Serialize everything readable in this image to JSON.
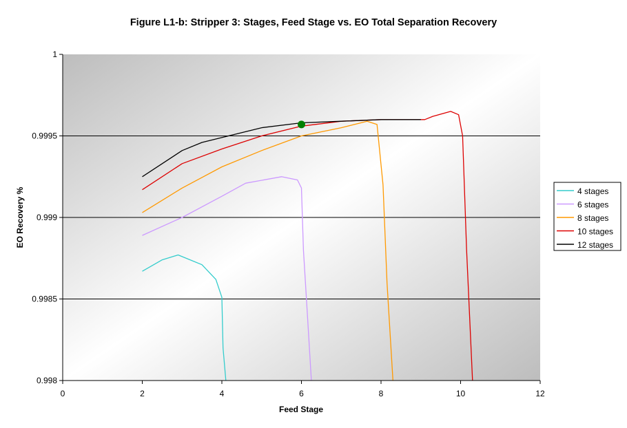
{
  "chart_data": {
    "type": "line",
    "title": "Figure L1-b: Stripper 3:  Stages, Feed Stage vs. EO Total Separation Recovery",
    "xlabel": "Feed Stage",
    "ylabel": "EO Recovery %",
    "xlim": [
      0,
      12
    ],
    "ylim": [
      0.998,
      1
    ],
    "x_ticks": [
      "0",
      "2",
      "4",
      "6",
      "8",
      "10",
      "12"
    ],
    "y_ticks": [
      "0.998",
      "0.9985",
      "0.999",
      "0.9995",
      "1"
    ],
    "grid": "horizontal major gridlines",
    "legend_position": "right",
    "series": [
      {
        "name": "4 stages",
        "color": "#33cccc",
        "points": [
          [
            2.0,
            0.99867
          ],
          [
            2.5,
            0.99874
          ],
          [
            2.9,
            0.99877
          ],
          [
            3.5,
            0.99871
          ],
          [
            3.85,
            0.99862
          ],
          [
            4.0,
            0.99851
          ],
          [
            4.03,
            0.9982
          ],
          [
            4.1,
            0.998
          ]
        ]
      },
      {
        "name": "6 stages",
        "color": "#cc99ff",
        "points": [
          [
            2.0,
            0.99889
          ],
          [
            3.0,
            0.999
          ],
          [
            4.0,
            0.99913
          ],
          [
            4.6,
            0.99921
          ],
          [
            5.5,
            0.99925
          ],
          [
            5.9,
            0.99923
          ],
          [
            6.0,
            0.99918
          ],
          [
            6.05,
            0.9988
          ],
          [
            6.15,
            0.9984
          ],
          [
            6.25,
            0.998
          ]
        ]
      },
      {
        "name": "8 stages",
        "color": "#ff9900",
        "points": [
          [
            2.0,
            0.99903
          ],
          [
            3.0,
            0.99918
          ],
          [
            4.0,
            0.99931
          ],
          [
            5.0,
            0.99941
          ],
          [
            6.0,
            0.9995
          ],
          [
            7.0,
            0.99955
          ],
          [
            7.65,
            0.99959
          ],
          [
            7.9,
            0.99957
          ],
          [
            8.05,
            0.9992
          ],
          [
            8.15,
            0.9986
          ],
          [
            8.3,
            0.998
          ]
        ]
      },
      {
        "name": "10 stages",
        "color": "#dd0000",
        "points": [
          [
            2.0,
            0.99917
          ],
          [
            3.0,
            0.99933
          ],
          [
            4.0,
            0.99942
          ],
          [
            5.0,
            0.9995
          ],
          [
            6.0,
            0.99956
          ],
          [
            7.0,
            0.99959
          ],
          [
            8.0,
            0.9996
          ],
          [
            9.1,
            0.9996
          ],
          [
            9.3,
            0.99962
          ],
          [
            9.75,
            0.99965
          ],
          [
            9.95,
            0.99963
          ],
          [
            10.05,
            0.9995
          ],
          [
            10.15,
            0.9988
          ],
          [
            10.3,
            0.998
          ]
        ]
      },
      {
        "name": "12 stages",
        "color": "#000000",
        "points": [
          [
            2.0,
            0.99925
          ],
          [
            3.0,
            0.99941
          ],
          [
            3.5,
            0.99946
          ],
          [
            4.0,
            0.99949
          ],
          [
            5.0,
            0.99955
          ],
          [
            6.0,
            0.99958
          ],
          [
            7.0,
            0.99959
          ],
          [
            8.0,
            0.9996
          ],
          [
            9.0,
            0.9996
          ]
        ]
      }
    ],
    "annotations": [
      {
        "type": "marker",
        "x": 6,
        "y": 0.99957,
        "color": "#008000"
      }
    ]
  }
}
